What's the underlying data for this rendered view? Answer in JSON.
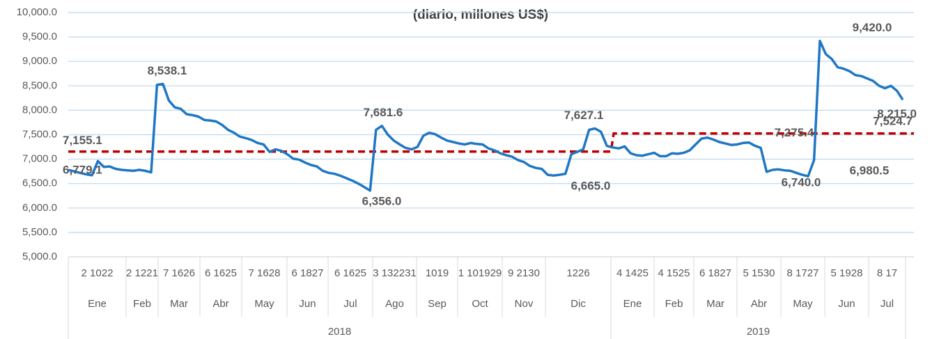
{
  "chart_data": {
    "type": "line",
    "title": "(diario, millones US$)",
    "ylim": [
      5000,
      10000
    ],
    "yticks": [
      {
        "value": 5000,
        "label": "5,000.0"
      },
      {
        "value": 5500,
        "label": "5,500.0"
      },
      {
        "value": 6000,
        "label": "6,000.0"
      },
      {
        "value": 6500,
        "label": "6,500.0"
      },
      {
        "value": 7000,
        "label": "7,000.0"
      },
      {
        "value": 7500,
        "label": "7,500.0"
      },
      {
        "value": 8000,
        "label": "8,000.0"
      },
      {
        "value": 8500,
        "label": "8,500.0"
      },
      {
        "value": 9000,
        "label": "9,000.0"
      },
      {
        "value": 9500,
        "label": "9,500.0"
      },
      {
        "value": 10000,
        "label": "10,000.0"
      }
    ],
    "grid": true,
    "series": [
      {
        "color": "#1f77c4",
        "values": [
          6779.1,
          6750,
          6720,
          6690,
          6670,
          6960,
          6840,
          6850,
          6800,
          6780,
          6770,
          6760,
          6780,
          6760,
          6730,
          8520,
          8538.1,
          8200,
          8060,
          8030,
          7920,
          7900,
          7870,
          7800,
          7790,
          7770,
          7700,
          7600,
          7540,
          7460,
          7430,
          7390,
          7330,
          7300,
          7150,
          7200,
          7170,
          7100,
          7010,
          6990,
          6930,
          6880,
          6850,
          6760,
          6720,
          6700,
          6660,
          6610,
          6560,
          6500,
          6430,
          6356.0,
          7600,
          7681.6,
          7500,
          7380,
          7300,
          7230,
          7200,
          7250,
          7480,
          7540,
          7510,
          7440,
          7380,
          7350,
          7320,
          7300,
          7330,
          7310,
          7300,
          7220,
          7180,
          7120,
          7080,
          7050,
          6980,
          6940,
          6860,
          6820,
          6800,
          6680,
          6665.0,
          6680,
          6700,
          7100,
          7150,
          7200,
          7600,
          7627.1,
          7560,
          7270,
          7240,
          7220,
          7260,
          7120,
          7080,
          7070,
          7100,
          7130,
          7060,
          7060,
          7120,
          7110,
          7130,
          7180,
          7300,
          7420,
          7440,
          7400,
          7350,
          7320,
          7290,
          7300,
          7330,
          7340,
          7275.4,
          7230,
          6740.0,
          6780,
          6790,
          6770,
          6760,
          6720,
          6680,
          6650,
          6980.5,
          9420.0,
          9150,
          9050,
          8880,
          8850,
          8800,
          8720,
          8700,
          8650,
          8600,
          8500,
          8450,
          8500,
          8400,
          8215.0
        ]
      }
    ],
    "averages": [
      {
        "value": 7155.1,
        "label": "7,155.1",
        "color": "#c00000"
      },
      {
        "value": 7524.7,
        "label": "7,524.7",
        "color": "#c00000"
      }
    ],
    "annotations": [
      {
        "value": 6779.1,
        "label": "6,779.1"
      },
      {
        "value": 8538.1,
        "label": "8,538.1"
      },
      {
        "value": 6356.0,
        "label": "6,356.0"
      },
      {
        "value": 7681.6,
        "label": "7,681.6"
      },
      {
        "value": 6665.0,
        "label": "6,665.0"
      },
      {
        "value": 7627.1,
        "label": "7,627.1"
      },
      {
        "value": 7275.4,
        "label": "7,275.4"
      },
      {
        "value": 6740.0,
        "label": "6,740.0"
      },
      {
        "value": 6980.5,
        "label": "6,980.5"
      },
      {
        "value": 9420.0,
        "label": "9,420.0"
      },
      {
        "value": 8215.0,
        "label": "8,215.0"
      }
    ],
    "x_axis": {
      "years": [
        {
          "label": "2018",
          "months": [
            {
              "label": "Ene",
              "days": "2 1022"
            },
            {
              "label": "Feb",
              "days": "2 1221"
            },
            {
              "label": "Mar",
              "days": "7 1626"
            },
            {
              "label": "Abr",
              "days": "6 1625"
            },
            {
              "label": "May",
              "days": "7 1628"
            },
            {
              "label": "Jun",
              "days": "6 1827"
            },
            {
              "label": "Jul",
              "days": "6 1625"
            },
            {
              "label": "Ago",
              "days": "3 132231"
            },
            {
              "label": "Sep",
              "days": "1019"
            },
            {
              "label": "Oct",
              "days": "1 101929"
            },
            {
              "label": "Nov",
              "days": "9 2130"
            },
            {
              "label": "Dic",
              "days": "1226"
            }
          ]
        },
        {
          "label": "2019",
          "months": [
            {
              "label": "Ene",
              "days": "4 1425"
            },
            {
              "label": "Feb",
              "days": "4 1525"
            },
            {
              "label": "Mar",
              "days": "6 1827"
            },
            {
              "label": "Abr",
              "days": "5 1530"
            },
            {
              "label": "May",
              "days": "8 1727"
            },
            {
              "label": "Jun",
              "days": "5 1928"
            },
            {
              "label": "Jul",
              "days": "8 17"
            }
          ]
        }
      ]
    }
  }
}
